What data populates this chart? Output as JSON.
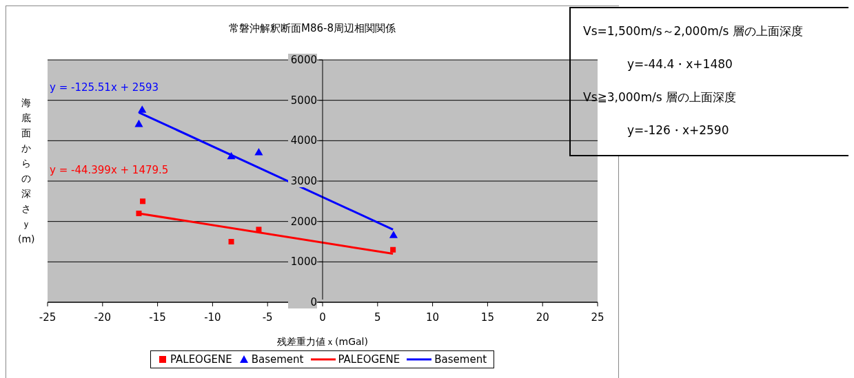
{
  "chart_data": {
    "type": "scatter",
    "title": "常磐沖解釈断面M86-8周辺相関関係",
    "xlabel": "残差重力値ｘ(mGal)",
    "ylabel": "海底面からの深さｙ(m)",
    "xlim": [
      -25,
      25
    ],
    "xticks": [
      -25,
      -20,
      -15,
      -10,
      -5,
      0,
      5,
      10,
      15,
      20,
      25
    ],
    "ylim": [
      0,
      6000
    ],
    "yticks": [
      0,
      1000,
      2000,
      3000,
      4000,
      5000,
      6000
    ],
    "grid": "y",
    "legend": "bottom",
    "series": [
      {
        "name": "PALEOGENE",
        "marker": "square",
        "color": "#ff0000",
        "x": [
          -16.35,
          -16.7,
          -8.3,
          -5.8,
          6.4
        ],
        "values": [
          2500,
          2200,
          1500,
          1800,
          1300
        ]
      },
      {
        "name": "Basement",
        "marker": "triangle",
        "color": "#0000ff",
        "x": [
          -16.4,
          -16.7,
          -8.3,
          -5.8,
          6.45
        ],
        "values": [
          4750,
          4400,
          3600,
          3700,
          1650
        ]
      },
      {
        "name": "PALEOGENE",
        "type": "line",
        "marker": "none",
        "color": "#ff0000",
        "x": [
          -16.7,
          6.4
        ],
        "values": [
          2200,
          1200
        ]
      },
      {
        "name": "Basement",
        "type": "line",
        "marker": "none",
        "color": "#0000ff",
        "x": [
          -16.7,
          6.4
        ],
        "values": [
          4700,
          1800
        ]
      }
    ],
    "annotations": [
      "y = -125.51x + 2593",
      "y = -44.399x + 1479.5",
      "Vs=1,500m/s～2,000m/s 層の上面深度",
      "y=-44.4・x+1480",
      "Vs≧3,000m/s 層の上面深度",
      "y=-126・x+2590"
    ]
  }
}
